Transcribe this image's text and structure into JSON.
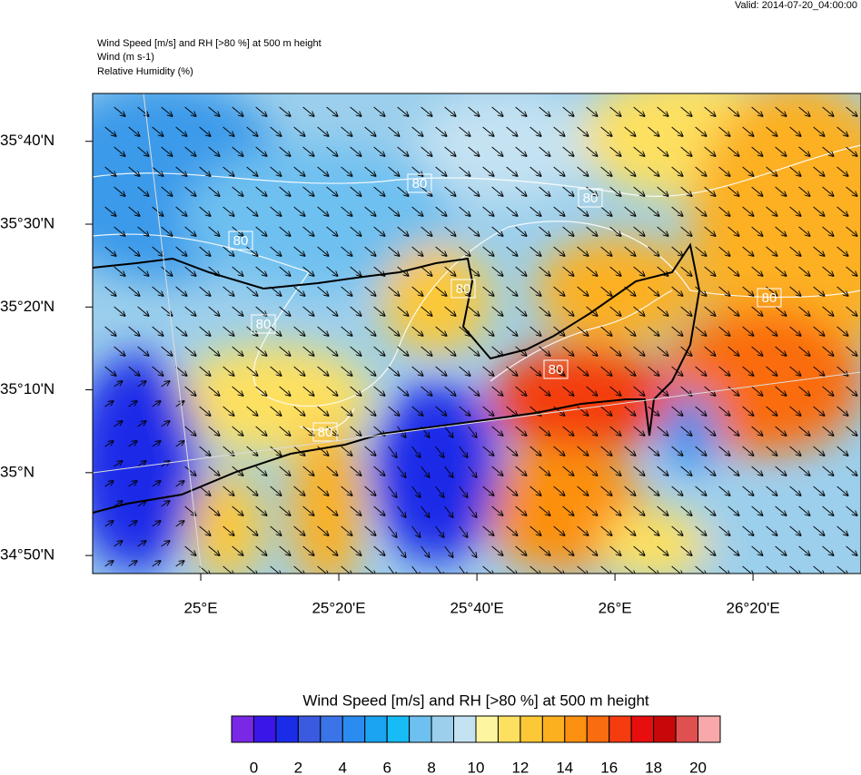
{
  "header": {
    "valid": "Valid: 2014-07-20_04:00:00",
    "title": "Wind Speed [m/s] and RH [>80 %] at 500 m height",
    "line2": "Wind   (m s-1)",
    "line3": "Relative Humidity   (%)"
  },
  "map": {
    "xlim": [
      24.739,
      26.594
    ],
    "ylim": [
      34.797,
      35.763
    ],
    "yticks": [
      {
        "value": 35.6667,
        "label": "35°40'N"
      },
      {
        "value": 35.5,
        "label": "35°30'N"
      },
      {
        "value": 35.3333,
        "label": "35°20'N"
      },
      {
        "value": 35.1667,
        "label": "35°10'N"
      },
      {
        "value": 35,
        "label": "35°N"
      },
      {
        "value": 34.8333,
        "label": "34°50'N"
      }
    ],
    "xticks": [
      {
        "value": 25,
        "label": "25°E"
      },
      {
        "value": 25.3333,
        "label": "25°20'E"
      },
      {
        "value": 25.6667,
        "label": "25°40'E"
      },
      {
        "value": 26,
        "label": "26°E"
      },
      {
        "value": 26.3333,
        "label": "26°20'E"
      }
    ],
    "contour_labels": [
      "80",
      "80",
      "80",
      "80",
      "80",
      "80",
      "80",
      "80"
    ]
  },
  "colorbar": {
    "title": "Wind Speed [m/s] and RH [>80 %] at 500 m height",
    "colors": [
      "#7a28e6",
      "#3a17e8",
      "#1a2ce8",
      "#3a5ae0",
      "#3a74e8",
      "#2a8cf0",
      "#1aa4f2",
      "#18bcf4",
      "#6ec0f0",
      "#9ccfec",
      "#c4e2f2",
      "#fdf5a0",
      "#fde060",
      "#fcc838",
      "#fcb020",
      "#fc9010",
      "#fa6c10",
      "#f43c10",
      "#e80e0e",
      "#c80808",
      "#e05050",
      "#f8a8a8"
    ],
    "ticks": [
      0,
      2,
      4,
      6,
      8,
      10,
      12,
      14,
      16,
      18,
      20
    ]
  }
}
